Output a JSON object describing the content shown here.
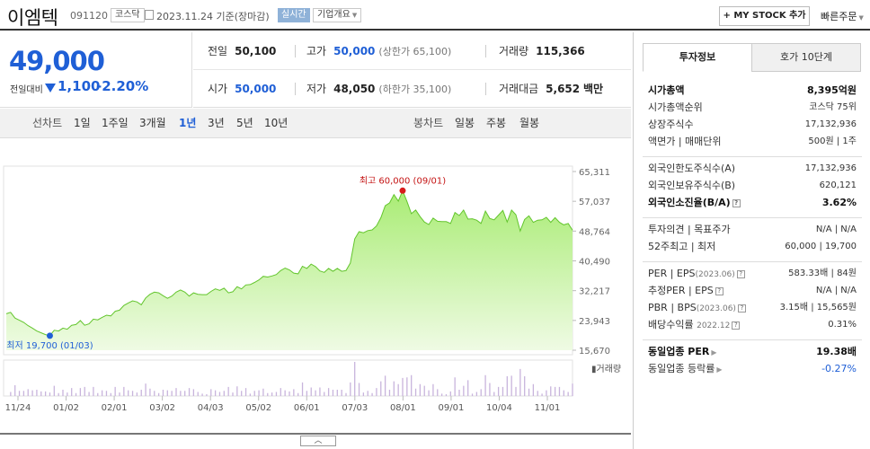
{
  "header": {
    "name": "이엠텍",
    "code": "091120",
    "market_badge": "코스닥",
    "date": "2023.11.24  기준(장마감)",
    "live_badge": "실시간",
    "company_badge": "기업개요",
    "mystock_button": "+ MY STOCK 추가",
    "quick_order": "빠른주문"
  },
  "summary": {
    "price": "49,000",
    "compare_label": "전일대비",
    "change": "1,100",
    "change_pct": "-2.20%",
    "trend": "down"
  },
  "stats": {
    "prev_close_label": "전일",
    "prev_close": "50,100",
    "high_label": "고가",
    "high": "50,000",
    "upper_limit": "(상한가 65,100)",
    "volume_label": "거래량",
    "volume": "115,366",
    "open_label": "시가",
    "open": "50,000",
    "low_label": "저가",
    "low": "48,050",
    "lower_limit": "(하한가 35,100)",
    "amount_label": "거래대금",
    "amount": "5,652",
    "amount_unit": "백만"
  },
  "tabs": {
    "line_label": "선차트",
    "line_periods": [
      "1일",
      "1주일",
      "3개월",
      "1년",
      "3년",
      "5년",
      "10년"
    ],
    "active_period": "1년",
    "candle_label": "봉차트",
    "candle_periods": [
      "일봉",
      "주봉",
      "월봉"
    ]
  },
  "side": {
    "tab_active": "투자정보",
    "tab_other": "호가 10단계",
    "market_cap_label": "시가총액",
    "market_cap": "8,395억원",
    "rank_label": "시가총액순위",
    "rank": "코스닥 75위",
    "shares_label": "상장주식수",
    "shares": "17,132,936",
    "par_label": "액면가 | 매매단위",
    "par": "500원 | 1주",
    "foreign_limit_label": "외국인한도주식수(A)",
    "foreign_limit": "17,132,936",
    "foreign_hold_label": "외국인보유주식수(B)",
    "foreign_hold": "620,121",
    "foreign_ratio_label": "외국인소진율(B/A)",
    "foreign_ratio": "3.62%",
    "opinion_label": "투자의견 | 목표주가",
    "opinion": "N/A | N/A",
    "w52_label": "52주최고 | 최저",
    "w52": "60,000 | 19,700",
    "per_label": "PER | EPS",
    "per_date": "(2023.06)",
    "per": "583.33배 | 84원",
    "eper_label": "추정PER | EPS",
    "eper": "N/A | N/A",
    "pbr_label": "PBR | BPS",
    "pbr_date": "(2023.06)",
    "pbr": "3.15배 | 15,565원",
    "div_label": "배당수익률",
    "div_date": "2022.12",
    "div": "0.31%",
    "sector_per_label": "동일업종 PER",
    "sector_per": "19.38배",
    "sector_rate_label": "동일업종 등락률",
    "sector_rate": "-0.27%"
  },
  "chart_data": {
    "type": "area",
    "y_ticks": [
      "65,311",
      "57,037",
      "48,764",
      "40,490",
      "32,217",
      "23,943",
      "15,670"
    ],
    "ylim": [
      15670,
      65311
    ],
    "x_ticks": [
      "11/24",
      "01/02",
      "02/01",
      "03/02",
      "04/03",
      "05/02",
      "06/01",
      "07/03",
      "08/01",
      "09/01",
      "10/04",
      "11/01"
    ],
    "high_label": "최고 60,000 (09/01)",
    "low_label": "최저 19,700 (01/03)",
    "volume_label": "거래량",
    "price": [
      25800,
      26200,
      24600,
      24000,
      23400,
      22500,
      21800,
      21000,
      20500,
      20000,
      19700,
      21200,
      21000,
      21800,
      21500,
      22600,
      22800,
      23900,
      22600,
      23000,
      24300,
      24100,
      24800,
      25400,
      25200,
      26500,
      26800,
      28100,
      28800,
      29400,
      29100,
      28300,
      30200,
      31200,
      31800,
      31600,
      30800,
      30100,
      30700,
      31800,
      32400,
      31800,
      30700,
      31600,
      31200,
      31100,
      31100,
      32000,
      32700,
      32300,
      32900,
      31600,
      31900,
      33300,
      32700,
      33800,
      33900,
      34500,
      35200,
      36200,
      36000,
      36300,
      36700,
      37800,
      38500,
      38000,
      37100,
      36900,
      39000,
      38400,
      39600,
      38900,
      37700,
      37300,
      38400,
      37600,
      38400,
      37600,
      37800,
      39900,
      46600,
      48600,
      48300,
      48900,
      49100,
      50200,
      52500,
      55800,
      56600,
      58900,
      57100,
      60000,
      57000,
      53600,
      54600,
      52800,
      51300,
      50600,
      52400,
      51500,
      51400,
      51400,
      50900,
      53900,
      53100,
      54600,
      52100,
      52200,
      51800,
      50900,
      54300,
      52300,
      51900,
      53200,
      54500,
      51300,
      54600,
      53300,
      48800,
      52000,
      53000,
      51200,
      51800,
      51900,
      52600,
      51200,
      52500,
      51200,
      50500,
      50900,
      49000
    ]
  }
}
